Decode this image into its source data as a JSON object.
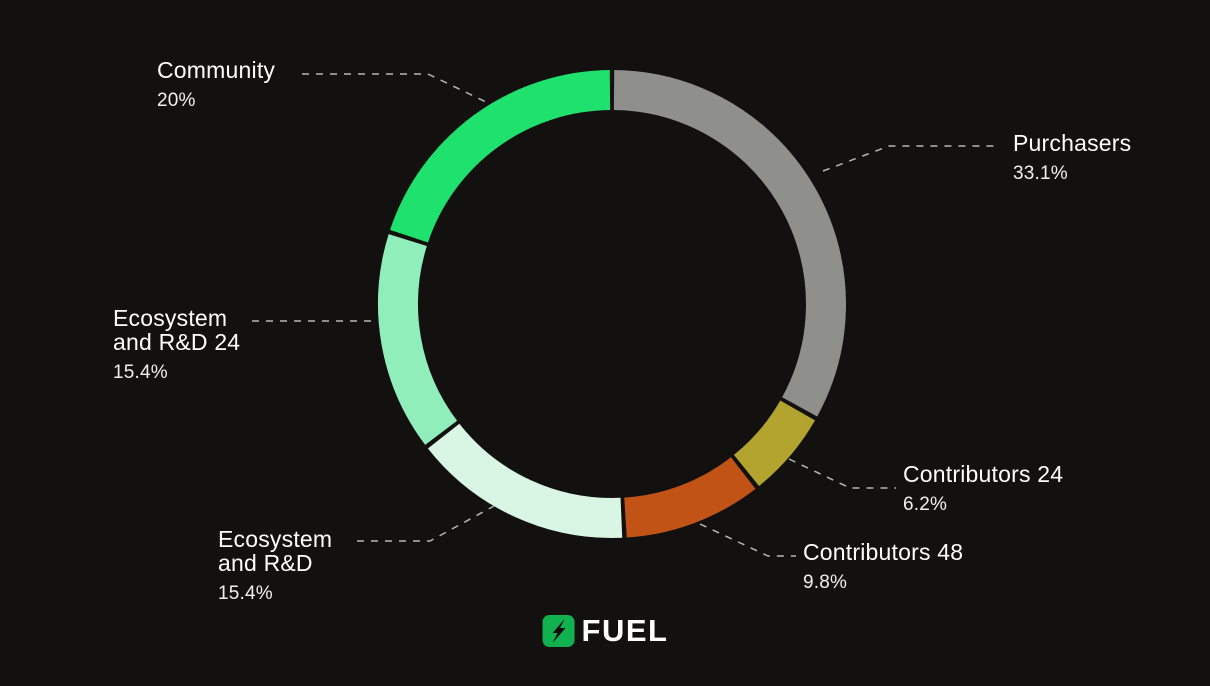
{
  "background": "#131110",
  "chart_data": {
    "type": "pie",
    "title": "",
    "donut": true,
    "start_angle_deg": 0,
    "direction": "clockwise",
    "grid": false,
    "legend_position": "callout-labels",
    "segments": [
      {
        "label": "Purchasers",
        "value": 33.1,
        "display": "33.1%",
        "color": "#8f8f8c"
      },
      {
        "label": "Contributors 24",
        "value": 6.2,
        "display": "6.2%",
        "color": "#b3a42f"
      },
      {
        "label": "Contributors 48",
        "value": 9.8,
        "display": "9.8%",
        "color": "#c25317"
      },
      {
        "label": "Ecosystem and R&D",
        "value": 15.4,
        "display": "15.4%",
        "color": "#d9f5e4"
      },
      {
        "label": "Ecosystem and R&D 24",
        "value": 15.4,
        "display": "15.4%",
        "color": "#90eebb"
      },
      {
        "label": "Community",
        "value": 20,
        "display": "20%",
        "color": "#1ee26d"
      }
    ]
  },
  "labels": {
    "community": {
      "name": "Community",
      "pct": "20%"
    },
    "purchasers": {
      "name": "Purchasers",
      "pct": "33.1%"
    },
    "ecosystem24": {
      "line1": "Ecosystem",
      "line2": "and R&D 24",
      "pct": "15.4%"
    },
    "contributors24": {
      "name": "Contributors 24",
      "pct": "6.2%"
    },
    "contributors48": {
      "name": "Contributors 48",
      "pct": "9.8%"
    },
    "ecosystem": {
      "line1": "Ecosystem",
      "line2": "and R&D",
      "pct": "15.4%"
    }
  },
  "logo": {
    "text": "FUEL"
  }
}
